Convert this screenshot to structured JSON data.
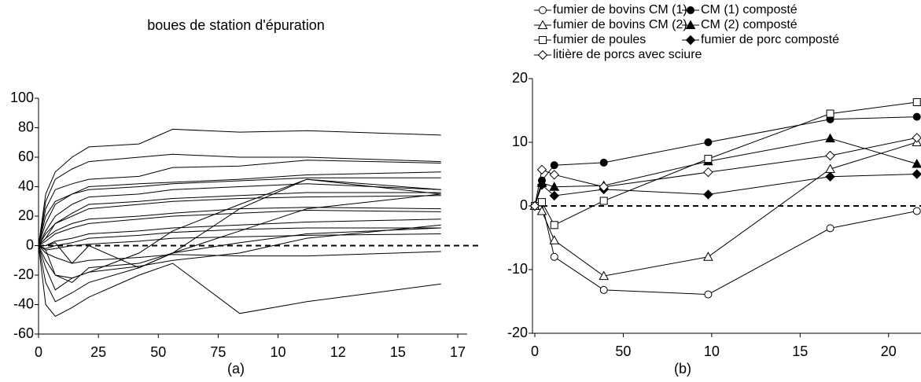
{
  "chart_data": [
    {
      "type": "line",
      "title": "boues de station d'épuration",
      "caption": "(a)",
      "color": "#000000",
      "x": [
        0,
        3,
        7,
        14,
        21,
        42,
        56,
        84,
        112,
        168
      ],
      "xlim": [
        0,
        175
      ],
      "xticks": [
        0,
        25,
        50,
        75,
        {
          "value": 100,
          "label": "10"
        },
        {
          "value": 125,
          "label": "12"
        },
        {
          "value": 150,
          "label": "15"
        },
        {
          "value": 175,
          "label": "17"
        }
      ],
      "ylim": [
        -60,
        100
      ],
      "yticks": [
        -60,
        -40,
        -20,
        0,
        20,
        40,
        60,
        80,
        100
      ],
      "reference_line": 0,
      "series": [
        {
          "values": [
            0,
            35,
            50,
            60,
            67,
            69,
            79,
            77,
            78,
            75
          ]
        },
        {
          "values": [
            0,
            30,
            45,
            52,
            57,
            60,
            62,
            60,
            60,
            57
          ]
        },
        {
          "values": [
            0,
            25,
            38,
            42,
            45,
            47,
            53,
            54,
            58,
            56
          ]
        },
        {
          "values": [
            0,
            20,
            30,
            35,
            40,
            42,
            43,
            45,
            48,
            50
          ]
        },
        {
          "values": [
            0,
            15,
            28,
            35,
            38,
            40,
            42,
            44,
            46,
            46
          ]
        },
        {
          "values": [
            0,
            10,
            20,
            28,
            33,
            35,
            38,
            40,
            42,
            38
          ]
        },
        {
          "values": [
            0,
            5,
            15,
            22,
            28,
            30,
            32,
            34,
            36,
            36
          ]
        },
        {
          "values": [
            0,
            8,
            15,
            20,
            25,
            28,
            30,
            32,
            33,
            34
          ]
        },
        {
          "values": [
            0,
            5,
            10,
            15,
            18,
            20,
            22,
            25,
            26,
            25
          ]
        },
        {
          "values": [
            0,
            3,
            8,
            12,
            15,
            18,
            20,
            22,
            24,
            23
          ]
        },
        {
          "values": [
            0,
            0,
            3,
            5,
            8,
            10,
            12,
            14,
            16,
            18
          ]
        },
        {
          "values": [
            0,
            -2,
            0,
            2,
            5,
            7,
            9,
            11,
            12,
            12
          ]
        },
        {
          "values": [
            0,
            -3,
            -2,
            0,
            1,
            3,
            5,
            6,
            7,
            8
          ]
        },
        {
          "values": [
            0,
            -5,
            -8,
            -12,
            -10,
            -8,
            -6,
            -7,
            -7,
            -4
          ]
        },
        {
          "values": [
            0,
            -10,
            -20,
            -25,
            -15,
            -12,
            -5,
            2,
            8,
            12
          ]
        },
        {
          "values": [
            0,
            -15,
            -30,
            -22,
            -18,
            -14,
            -10,
            -5,
            5,
            14
          ]
        },
        {
          "values": [
            0,
            -25,
            -38,
            -32,
            -25,
            -15,
            -5,
            10,
            25,
            35
          ]
        },
        {
          "values": [
            0,
            -40,
            -48,
            -42,
            -35,
            -20,
            -12,
            -46,
            -38,
            -26
          ]
        },
        {
          "values": [
            0,
            0,
            2,
            -12,
            0,
            -15,
            -5,
            25,
            45,
            38
          ]
        },
        {
          "values": [
            0,
            -3,
            -20,
            -22,
            -18,
            -5,
            10,
            28,
            45,
            35
          ]
        }
      ]
    },
    {
      "type": "line",
      "caption": "(b)",
      "color": "#000000",
      "x": [
        0,
        4,
        11,
        39,
        98,
        167,
        216
      ],
      "xlim": [
        0,
        217
      ],
      "xticks": [
        0,
        50,
        {
          "value": 100,
          "label": "10"
        },
        {
          "value": 150,
          "label": "15"
        },
        {
          "value": 200,
          "label": "20"
        }
      ],
      "ylim": [
        -20,
        20
      ],
      "yticks": [
        -20,
        -10,
        0,
        10,
        20
      ],
      "reference_line": 0,
      "series": [
        {
          "name": "fumier de bovins CM (1)",
          "marker": "circle",
          "filled": false,
          "values": [
            0,
            0.5,
            -8,
            -13.2,
            -13.9,
            -3.5,
            -0.8
          ]
        },
        {
          "name": "CM (1) composté",
          "marker": "circle",
          "filled": true,
          "values": [
            0,
            4,
            6.4,
            6.8,
            10,
            13.6,
            14
          ]
        },
        {
          "name": "fumier de bovins CM (2)",
          "marker": "triangle",
          "filled": false,
          "values": [
            0,
            -0.8,
            -5.4,
            -11,
            -8,
            5.8,
            10
          ]
        },
        {
          "name": "CM (2) composté",
          "marker": "triangle",
          "filled": true,
          "values": [
            0,
            3.6,
            3,
            3.2,
            7,
            10.6,
            6.6
          ]
        },
        {
          "name": "fumier de poules",
          "marker": "square",
          "filled": false,
          "values": [
            0,
            0.6,
            -3,
            0.8,
            7.4,
            14.5,
            16.3
          ]
        },
        {
          "name": "fumier de porc composté",
          "marker": "diamond",
          "filled": true,
          "values": [
            0,
            3.3,
            1.6,
            2.6,
            1.8,
            4.6,
            5
          ]
        },
        {
          "name": "litière de porcs avec sciure",
          "marker": "diamond",
          "filled": false,
          "values": [
            0,
            5.7,
            4.9,
            3,
            5.3,
            7.9,
            10.7
          ]
        }
      ]
    }
  ]
}
